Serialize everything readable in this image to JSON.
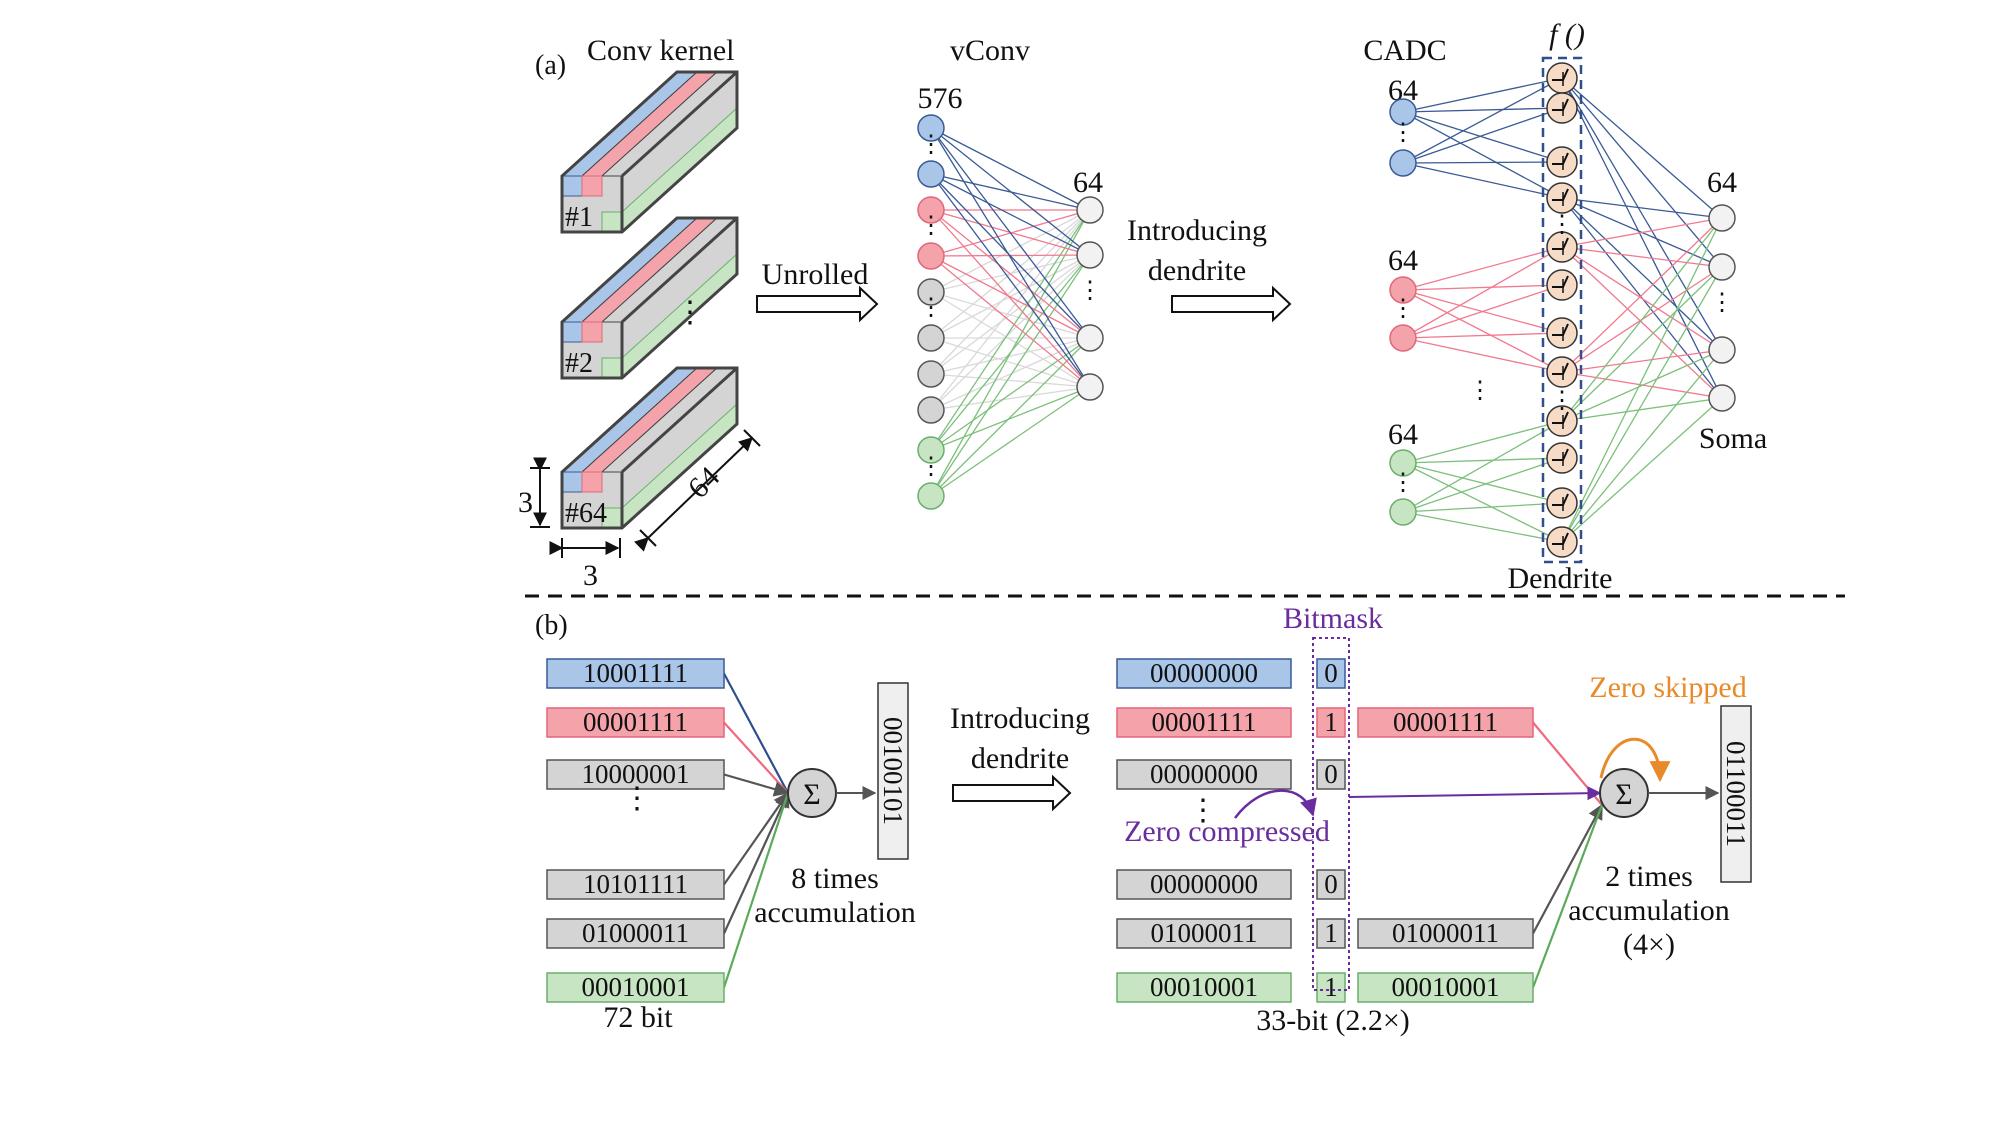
{
  "panel_a": {
    "label": "(a)",
    "kernel_title": "Conv kernel",
    "kernels": [
      "#1",
      "#2",
      "#64"
    ],
    "dim_height": "3",
    "dim_width": "3",
    "dim_depth": "64",
    "arrow1_label": "Unrolled",
    "vconv_title": "vConv",
    "vconv_input_count": "576",
    "vconv_output_count": "64",
    "arrow2_label_line1": "Introducing",
    "arrow2_label_line2": "dendrite",
    "cadc_title": "CADC",
    "f_label": "f ()",
    "group_counts": [
      "64",
      "64",
      "64"
    ],
    "output_count": "64",
    "soma_label": "Soma",
    "dendrite_label": "Dendrite"
  },
  "panel_b": {
    "label": "(b)",
    "left_values": [
      "10001111",
      "00001111",
      "10000001",
      "10101111",
      "01000011",
      "00010001"
    ],
    "left_colors": [
      "blue",
      "red",
      "gray",
      "gray",
      "gray",
      "green"
    ],
    "left_footer": "72 bit",
    "sum_symbol": "Σ",
    "left_result": "00100101",
    "left_acc_line1": "8 times",
    "left_acc_line2": "accumulation",
    "arrow_label_line1": "Introducing",
    "arrow_label_line2": "dendrite",
    "bitmask_title": "Bitmask",
    "right_values": [
      "00000000",
      "00001111",
      "00000000",
      "00000000",
      "01000011",
      "00010001"
    ],
    "right_colors": [
      "blue",
      "red",
      "gray",
      "gray",
      "gray",
      "green"
    ],
    "bitmask_bits": [
      "0",
      "1",
      "0",
      "0",
      "1",
      "1"
    ],
    "compressed_values": [
      "00001111",
      "01000011",
      "00010001"
    ],
    "compressed_colors": [
      "red",
      "gray",
      "green"
    ],
    "zero_compressed_label": "Zero compressed",
    "zero_skipped_label": "Zero skipped",
    "right_result": "01100011",
    "right_acc_line1": "2 times",
    "right_acc_line2": "accumulation",
    "right_acc_line3": "(4×)",
    "right_footer": "33-bit (2.2×)"
  },
  "colors": {
    "blue_fill": "#a9c6e8",
    "blue_stroke": "#3a5a95",
    "red_fill": "#f5a3ab",
    "red_stroke": "#e0677a",
    "gray_fill": "#d4d4d4",
    "gray_stroke": "#555555",
    "green_fill": "#c7e5c3",
    "green_stroke": "#6aae6a",
    "purple": "#6a2c9e",
    "orange": "#e98a2a",
    "dendrite_fill": "#f6dcc6"
  }
}
